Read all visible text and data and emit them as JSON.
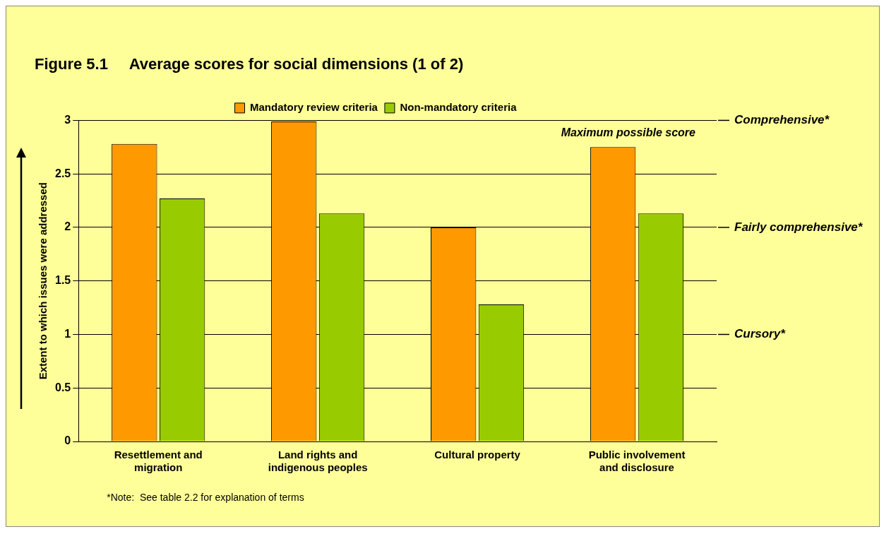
{
  "chart_data": {
    "type": "bar",
    "title": "Figure 5.1     Average scores for social dimensions (1 of 2)",
    "ylabel": "Extent to which issues were addressed",
    "categories": [
      "Resettlement and migration",
      "Land rights and indigenous peoples",
      "Cultural property",
      "Public involvement and disclosure"
    ],
    "series": [
      {
        "name": "Mandatory review criteria",
        "color": "#ff9900",
        "values": [
          2.78,
          2.99,
          2.0,
          2.75
        ]
      },
      {
        "name": "Non-mandatory criteria",
        "color": "#99cc00",
        "values": [
          2.27,
          2.13,
          1.28,
          2.13
        ]
      }
    ],
    "ylim": [
      0,
      3
    ],
    "yticks": [
      0,
      0.5,
      1,
      1.5,
      2,
      2.5,
      3
    ],
    "ref_lines": [
      {
        "axis": "y",
        "value": 1,
        "label": "Cursory*"
      },
      {
        "axis": "y",
        "value": 2,
        "label": "Fairly comprehensive*"
      },
      {
        "axis": "y",
        "value": 3,
        "label": "Comprehensive*"
      }
    ],
    "grid": "y",
    "legend": "top",
    "annotations": [
      "Maximum possible score",
      "*Note:  See table 2.2 for explanation of terms"
    ]
  }
}
